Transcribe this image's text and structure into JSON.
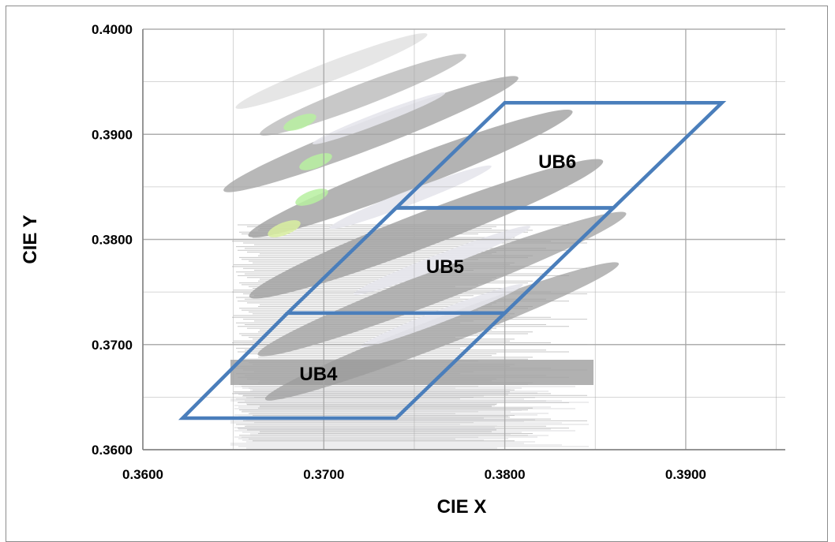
{
  "chart_data": {
    "type": "scatter",
    "xlabel": "CIE  X",
    "ylabel": "CIE Y",
    "xlim": [
      0.36,
      0.3955
    ],
    "ylim": [
      0.36,
      0.4
    ],
    "x_ticks": [
      "0.3600",
      "0.3700",
      "0.3800",
      "0.3900"
    ],
    "y_ticks": [
      "0.3600",
      "0.3700",
      "0.3800",
      "0.3900",
      "0.4000"
    ],
    "grid": true,
    "bins": [
      {
        "name": "UB4",
        "polygon": [
          [
            0.3622,
            0.363
          ],
          [
            0.374,
            0.363
          ],
          [
            0.38,
            0.373
          ],
          [
            0.368,
            0.373
          ]
        ]
      },
      {
        "name": "UB5",
        "polygon": [
          [
            0.368,
            0.373
          ],
          [
            0.38,
            0.373
          ],
          [
            0.386,
            0.383
          ],
          [
            0.374,
            0.383
          ]
        ]
      },
      {
        "name": "UB6",
        "polygon": [
          [
            0.374,
            0.383
          ],
          [
            0.386,
            0.383
          ],
          [
            0.392,
            0.393
          ],
          [
            0.38,
            0.393
          ]
        ]
      }
    ],
    "bin_label_positions": [
      {
        "name": "UB4",
        "x": 0.3697,
        "y": 0.3672
      },
      {
        "name": "UB5",
        "x": 0.3767,
        "y": 0.3774
      },
      {
        "name": "UB6",
        "x": 0.3829,
        "y": 0.3874
      }
    ],
    "colors": {
      "bin_outline": "#4a7ebb",
      "grid": "#a6a6a6",
      "background_bands": "#9a9a9a"
    }
  }
}
